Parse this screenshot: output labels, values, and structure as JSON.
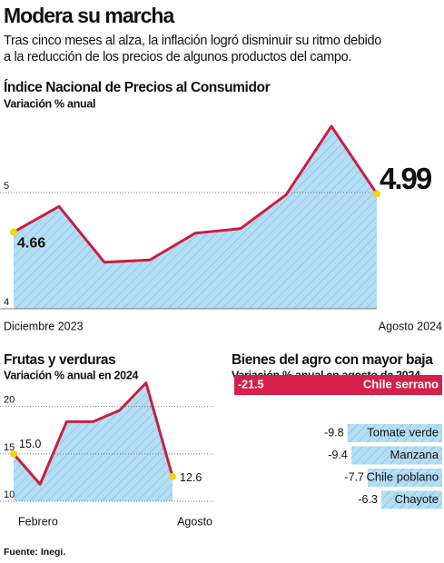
{
  "header": {
    "title": "Modera su marcha",
    "subtitle": [
      "Tras cinco meses al alza, la inflación logró disminuir su ritmo debido",
      "a la reducción de los precios de algunos productos del campo."
    ]
  },
  "chart_data": [
    {
      "type": "area",
      "title": "Índice Nacional de Precios al Consumidor",
      "subtitle": "Variación % anual",
      "categories": [
        "Diciembre 2023",
        null,
        null,
        null,
        null,
        null,
        null,
        null,
        "Agosto 2024"
      ],
      "values": [
        4.66,
        4.88,
        4.4,
        4.42,
        4.65,
        4.69,
        4.98,
        5.57,
        4.99
      ],
      "ylim": [
        4,
        5.75
      ],
      "yticks": [
        4,
        5
      ],
      "color": "#c8203f",
      "grid": true
    },
    {
      "type": "area",
      "title": "Frutas y verduras",
      "subtitle": "Variación % anual en 2024",
      "categories": [
        "Febrero",
        null,
        null,
        null,
        null,
        null,
        "Agosto"
      ],
      "values": [
        15.0,
        11.8,
        18.4,
        18.4,
        19.6,
        22.5,
        12.6
      ],
      "value_labels": [
        "15.0",
        null,
        null,
        null,
        null,
        null,
        "12.6"
      ],
      "ylim": [
        10,
        24
      ],
      "yticks": [
        10,
        15,
        20
      ],
      "color": "#c8203f",
      "grid": true
    },
    {
      "type": "barh",
      "title": "Bienes del agro con mayor baja",
      "subtitle": "Variación % anual en agosto de 2024",
      "categories": [
        "Chile serrano",
        "Tomate verde",
        "Manzana",
        "Chile poblano",
        "Chayote"
      ],
      "values": [
        -21.5,
        -9.8,
        -9.4,
        -7.7,
        -6.3
      ],
      "xlim": [
        -21.5,
        0
      ],
      "colors": [
        "#d6204b",
        "#b3def5",
        "#b3def5",
        "#b3def5",
        "#b3def5"
      ]
    }
  ],
  "source": "Fuente: Inegi."
}
